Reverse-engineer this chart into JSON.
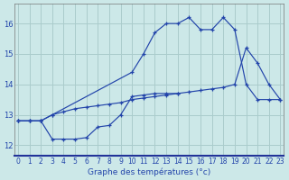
{
  "xlabel": "Graphe des températures (°c)",
  "background_color": "#cce8e8",
  "grid_color": "#aacccc",
  "line_color": "#2244aa",
  "xlim": [
    -0.3,
    23.3
  ],
  "ylim": [
    11.65,
    16.65
  ],
  "yticks": [
    12,
    13,
    14,
    15,
    16
  ],
  "xticks": [
    0,
    1,
    2,
    3,
    4,
    5,
    6,
    7,
    8,
    9,
    10,
    11,
    12,
    13,
    14,
    15,
    16,
    17,
    18,
    19,
    20,
    21,
    22,
    23
  ],
  "curve1_x": [
    0,
    1,
    2,
    3,
    10,
    11,
    12,
    13,
    14,
    15,
    16,
    17,
    18,
    19,
    20,
    21,
    22,
    23
  ],
  "curve1_y": [
    12.8,
    12.8,
    12.8,
    13.0,
    14.4,
    15.0,
    15.7,
    16.0,
    16.0,
    16.2,
    15.8,
    15.8,
    16.2,
    15.8,
    14.0,
    13.5,
    13.5,
    13.5
  ],
  "curve2_x": [
    0,
    1,
    2,
    3,
    4,
    5,
    6,
    7,
    8,
    9,
    10,
    11,
    12,
    13,
    14,
    15,
    16,
    17,
    18,
    19,
    20,
    21,
    22,
    23
  ],
  "curve2_y": [
    12.8,
    12.8,
    12.8,
    13.0,
    13.1,
    13.2,
    13.25,
    13.3,
    13.35,
    13.4,
    13.5,
    13.55,
    13.6,
    13.65,
    13.7,
    13.75,
    13.8,
    13.85,
    13.9,
    14.0,
    15.2,
    14.7,
    14.0,
    13.5
  ],
  "curve3_x": [
    0,
    1,
    2,
    3,
    4,
    5,
    6,
    7,
    8,
    9,
    10,
    11,
    12,
    13,
    14
  ],
  "curve3_y": [
    12.8,
    12.8,
    12.8,
    12.2,
    12.2,
    12.2,
    12.25,
    12.6,
    12.65,
    13.0,
    13.6,
    13.65,
    13.7,
    13.7,
    13.7
  ]
}
